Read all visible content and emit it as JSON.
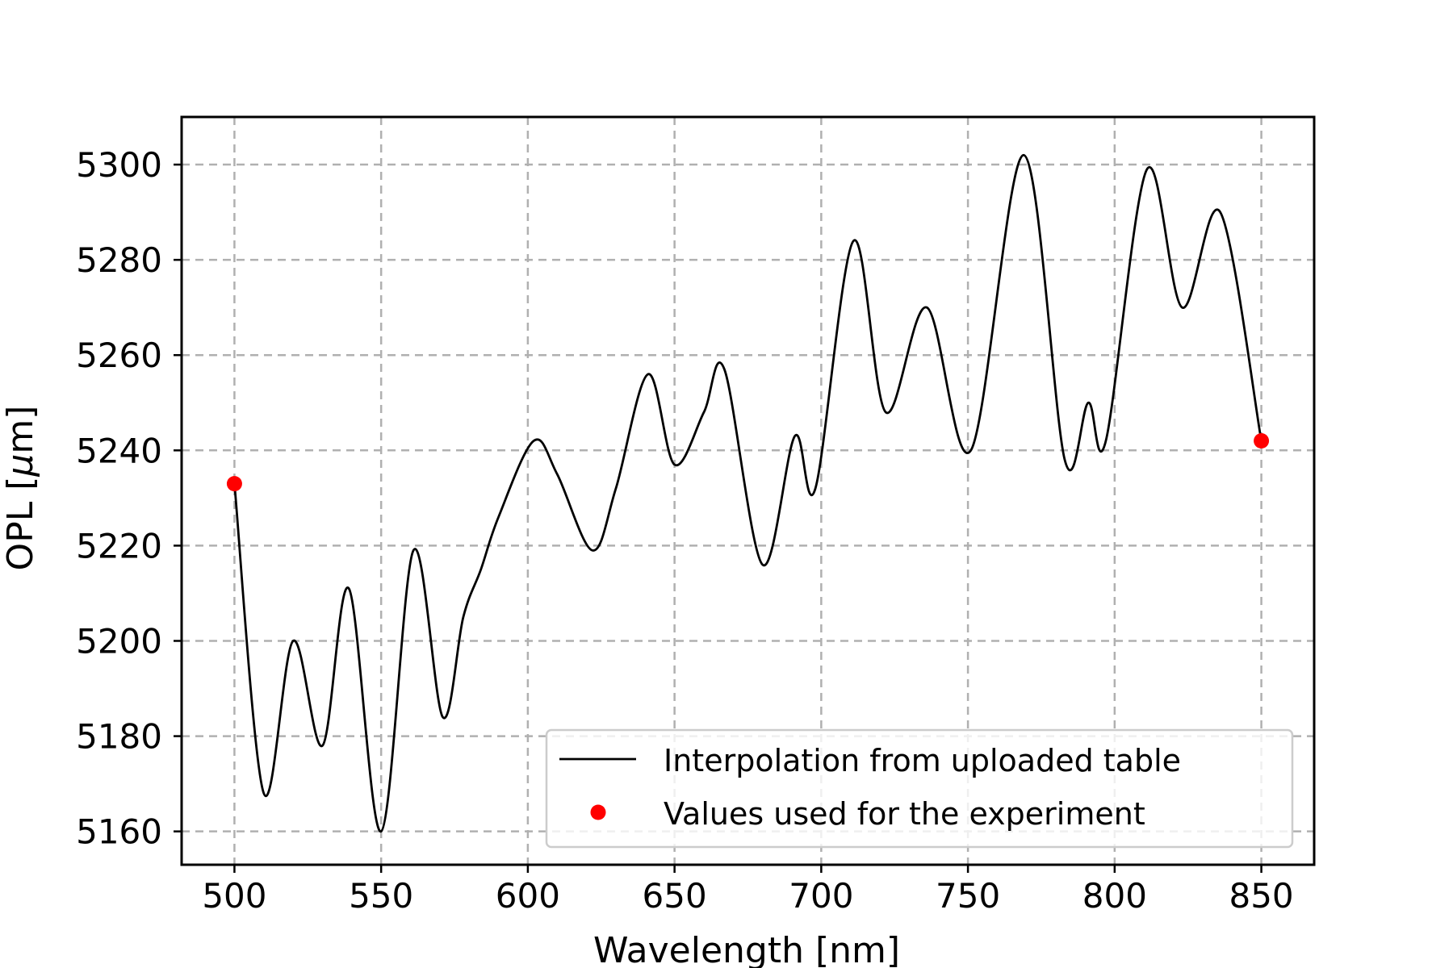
{
  "chart_data": {
    "type": "line",
    "xlabel": "Wavelength [nm]",
    "ylabel_prefix": "OPL [",
    "ylabel_symbol": "μ",
    "ylabel_suffix": "m]",
    "xlim": [
      482,
      868
    ],
    "ylim": [
      5153,
      5310
    ],
    "xticks": [
      500,
      550,
      600,
      650,
      700,
      750,
      800,
      850
    ],
    "yticks": [
      5160,
      5180,
      5200,
      5220,
      5240,
      5260,
      5280,
      5300
    ],
    "grid": true,
    "legend_position": "lower-right",
    "colors": {
      "line": "#000000",
      "points": "#ff0000"
    },
    "series": [
      {
        "name": "Interpolation from uploaded table",
        "kind": "line",
        "x": [
          500,
          510,
          520,
          530,
          539,
          550,
          561,
          571,
          578,
          584,
          590,
          602,
          610,
          622,
          630,
          641,
          650,
          660,
          667,
          680,
          691,
          698,
          711,
          722,
          736,
          751,
          769,
          783,
          791,
          797,
          811,
          823,
          836,
          850
        ],
        "y": [
          5233,
          5168,
          5200,
          5178,
          5211,
          5160,
          5219,
          5184,
          5205,
          5215,
          5226,
          5242,
          5235,
          5219,
          5232,
          5256,
          5237,
          5248,
          5257,
          5216,
          5243,
          5232,
          5284,
          5248,
          5270,
          5240,
          5302,
          5238,
          5250,
          5242,
          5299,
          5270,
          5290,
          5242
        ]
      },
      {
        "name": "Values used for the experiment",
        "kind": "scatter",
        "x": [
          500,
          850
        ],
        "y": [
          5233,
          5242
        ]
      }
    ]
  }
}
